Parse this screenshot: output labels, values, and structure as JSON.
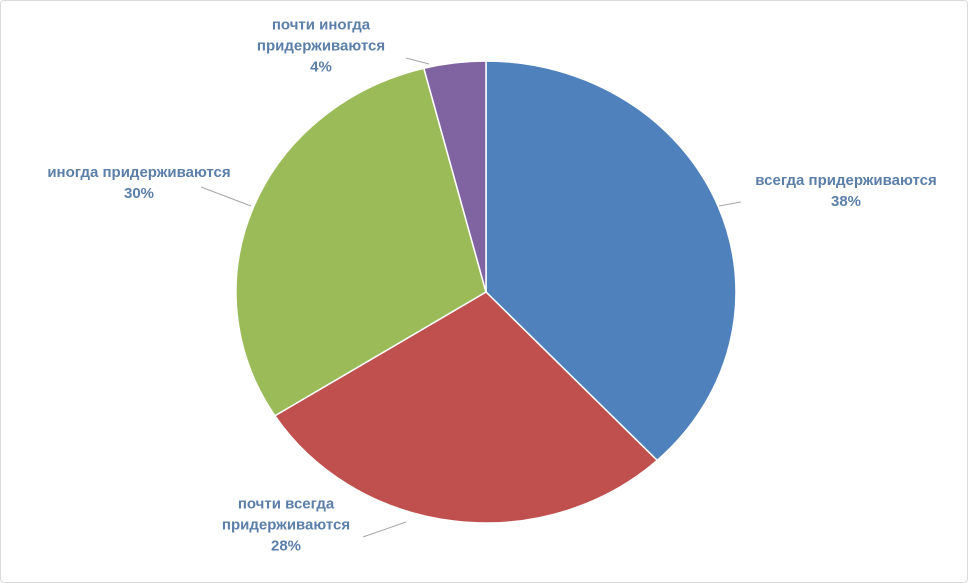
{
  "chart_data": {
    "type": "pie",
    "categories": [
      "всегда придерживаются",
      "почти всегда придерживаются",
      "иногда придерживаются",
      "почти иногда придерживаются"
    ],
    "values": [
      38,
      28,
      30,
      4
    ],
    "value_labels": [
      "38%",
      "28%",
      "30%",
      "4%"
    ],
    "colors": [
      "#4f81bd",
      "#c0504d",
      "#9bbb59",
      "#8064a2"
    ]
  }
}
